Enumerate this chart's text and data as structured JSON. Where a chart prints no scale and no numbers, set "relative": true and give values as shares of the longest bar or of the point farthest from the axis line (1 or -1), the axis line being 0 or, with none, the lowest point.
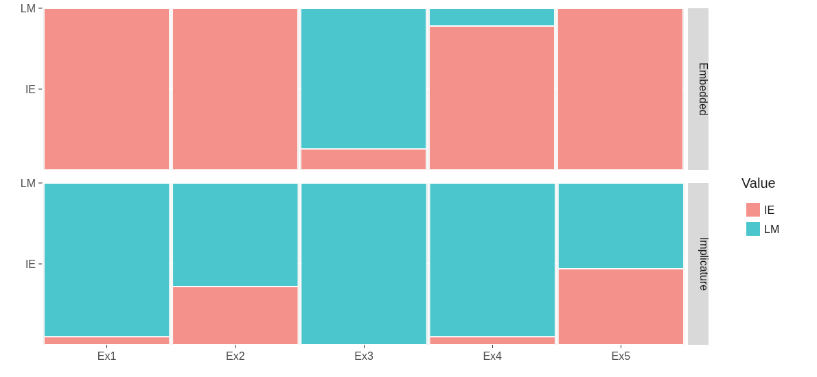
{
  "chart_data": [
    {
      "type": "bar",
      "y2label": "Embedded",
      "stacked": true,
      "relative": true,
      "categories": [
        null,
        null,
        null,
        null,
        null
      ],
      "series": [
        {
          "color": "#f5918b",
          "values": [
            1,
            1,
            0.13,
            0.89,
            1
          ]
        },
        {
          "color": "#4ac6cc",
          "values": [
            0,
            0,
            0.87,
            0.11,
            0
          ]
        }
      ],
      "annotations": [
        "IE",
        "LM"
      ],
      "grid": true,
      "tick_labels": false
    },
    {
      "type": "bar",
      "y2label": "Implicature",
      "stacked": true,
      "relative": true,
      "categories": [
        "Ex1",
        "Ex2",
        "Ex3",
        "Ex4",
        "Ex5"
      ],
      "series": [
        {
          "name": "IE",
          "color": "#f5918b",
          "values": [
            0.05,
            0.36,
            0,
            0.05,
            0.47
          ]
        },
        {
          "name": "LM",
          "color": "#4ac6cc",
          "values": [
            0.95,
            0.64,
            1,
            0.95,
            0.53
          ]
        }
      ],
      "annotations": [
        "IE",
        "LM"
      ],
      "grid": true,
      "legend": "right",
      "legend_title": "Value",
      "tick_labels": "x"
    }
  ]
}
